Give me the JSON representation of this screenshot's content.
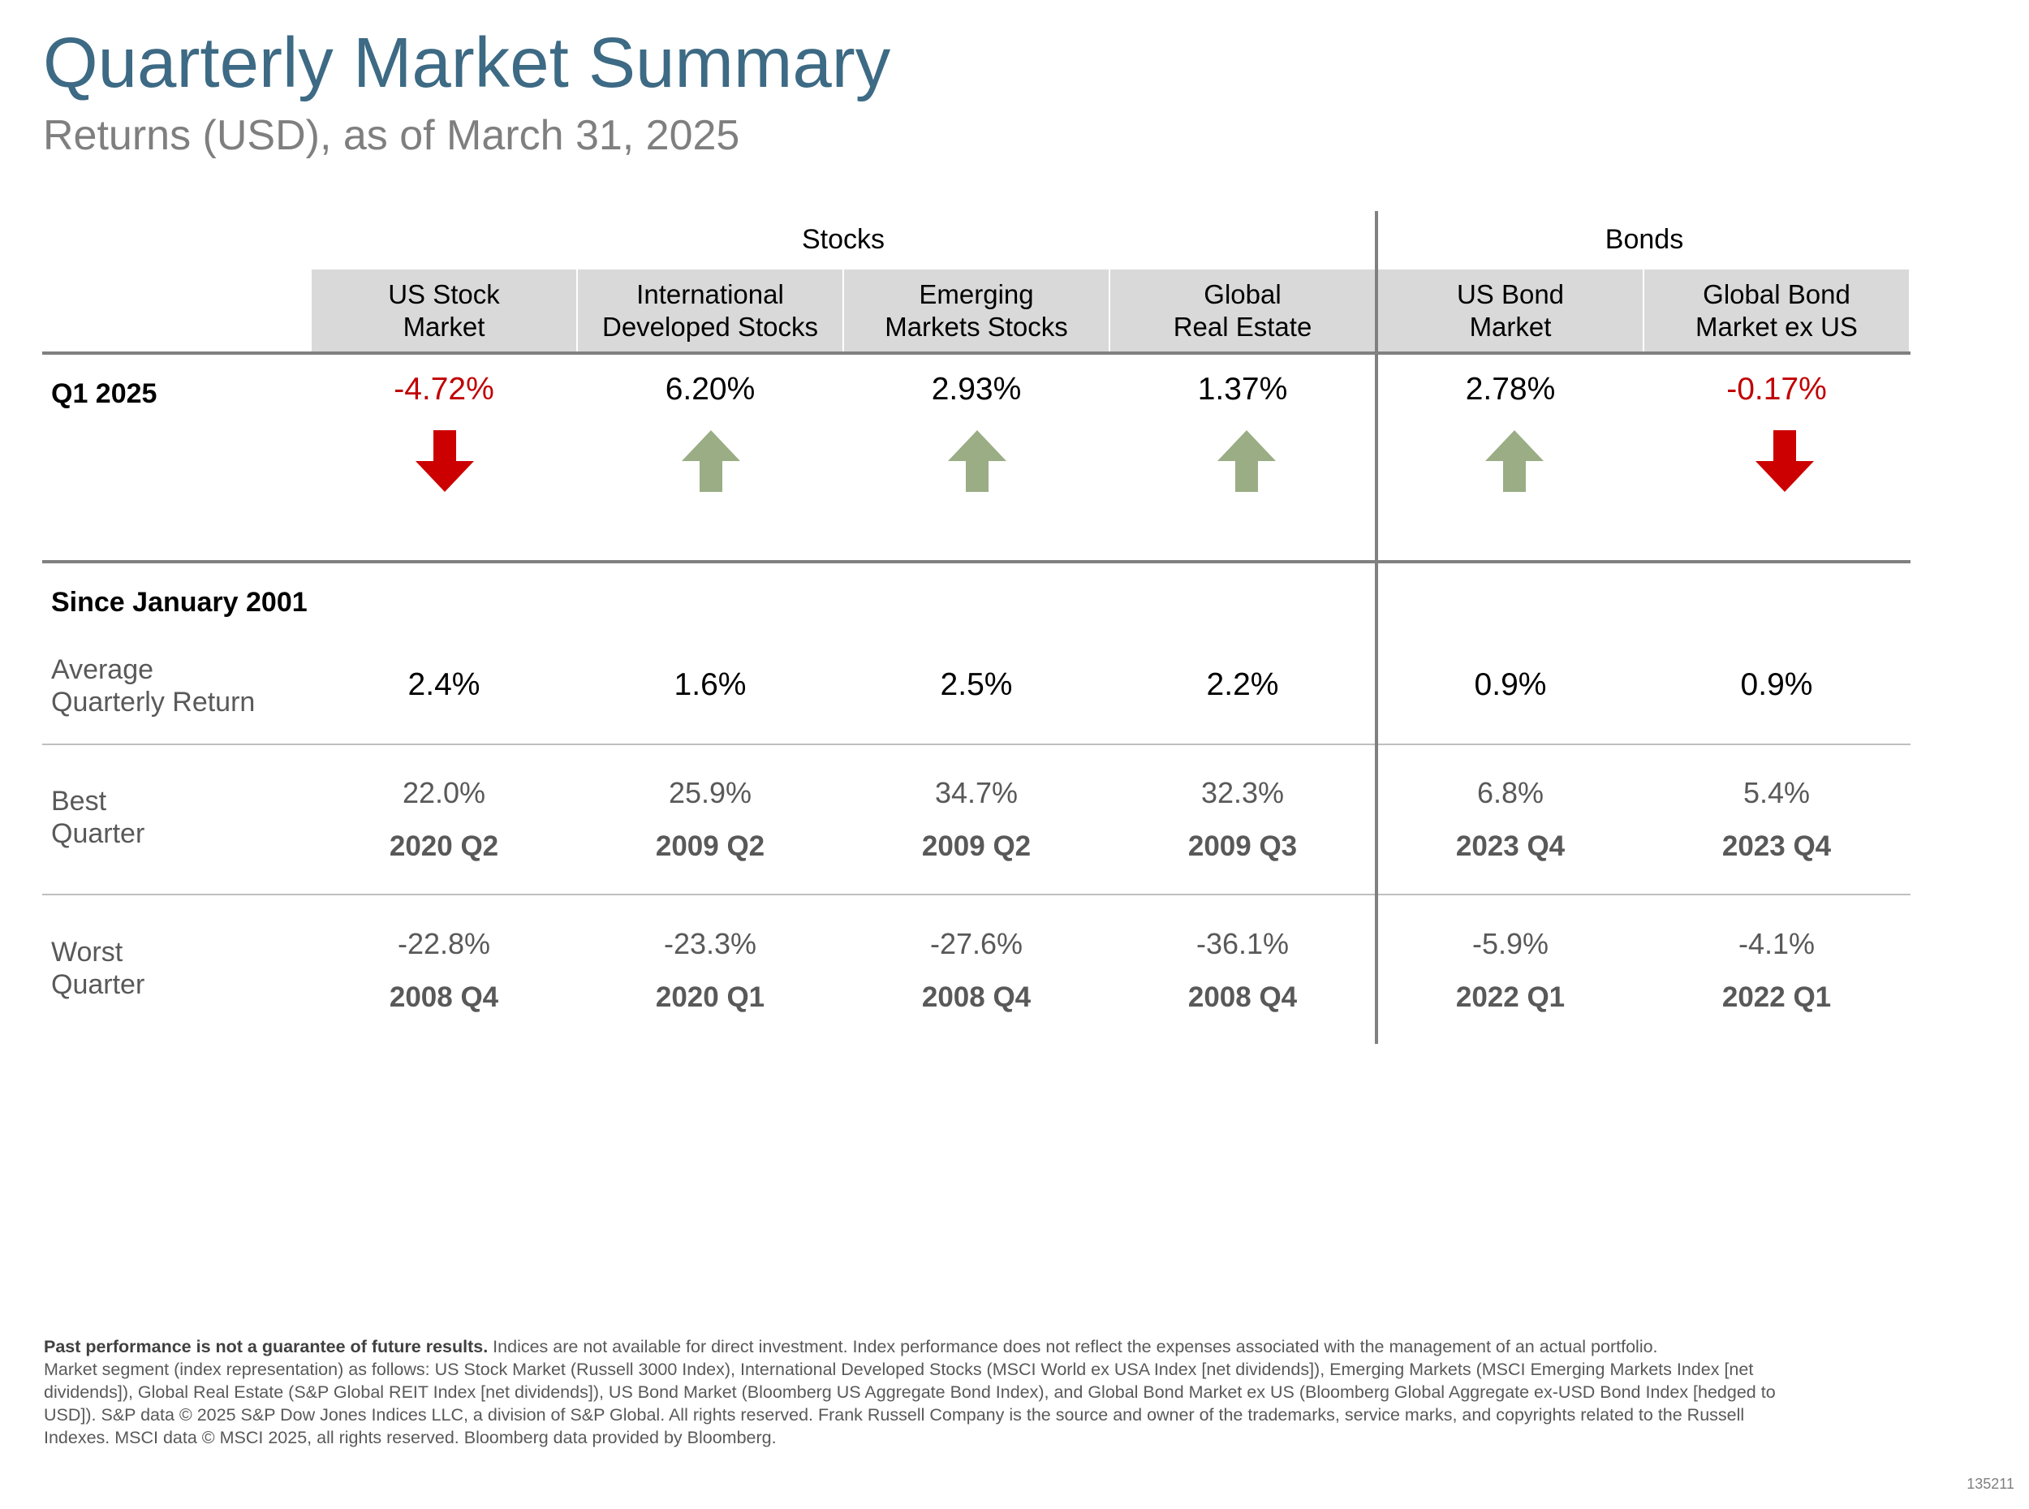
{
  "header": {
    "title": "Quarterly Market Summary",
    "subtitle": "Returns (USD), as of March 31, 2025"
  },
  "groups": {
    "stocks": "Stocks",
    "bonds": "Bonds"
  },
  "columns": [
    {
      "line1": "US Stock",
      "line2": "Market"
    },
    {
      "line1": "International",
      "line2": "Developed Stocks"
    },
    {
      "line1": "Emerging",
      "line2": "Markets Stocks"
    },
    {
      "line1": "Global",
      "line2": "Real Estate"
    },
    {
      "line1": "US Bond",
      "line2": "Market"
    },
    {
      "line1": "Global Bond",
      "line2": "Market ex US"
    }
  ],
  "q1": {
    "label": "Q1 2025",
    "values": [
      "-4.72%",
      "6.20%",
      "2.93%",
      "1.37%",
      "2.78%",
      "-0.17%"
    ],
    "directions": [
      "down",
      "up",
      "up",
      "up",
      "up",
      "down"
    ]
  },
  "since": {
    "label": "Since January 2001",
    "average": {
      "label_line1": "Average",
      "label_line2": "Quarterly Return",
      "values": [
        "2.4%",
        "1.6%",
        "2.5%",
        "2.2%",
        "0.9%",
        "0.9%"
      ]
    },
    "best": {
      "label_line1": "Best",
      "label_line2": "Quarter",
      "values": [
        "22.0%",
        "25.9%",
        "34.7%",
        "32.3%",
        "6.8%",
        "5.4%"
      ],
      "quarters": [
        "2020 Q2",
        "2009 Q2",
        "2009 Q2",
        "2009 Q3",
        "2023 Q4",
        "2023 Q4"
      ]
    },
    "worst": {
      "label_line1": "Worst",
      "label_line2": "Quarter",
      "values": [
        "-22.8%",
        "-23.3%",
        "-27.6%",
        "-36.1%",
        "-5.9%",
        "-4.1%"
      ],
      "quarters": [
        "2008 Q4",
        "2020 Q1",
        "2008 Q4",
        "2008 Q4",
        "2022 Q1",
        "2022 Q1"
      ]
    }
  },
  "colors": {
    "title": "#3d6a84",
    "negative": "#c00000",
    "positive": "#000000",
    "arrow_up": "#9aad85",
    "arrow_down": "#cc0000",
    "header_fill": "#d9d9d9"
  },
  "footnote": {
    "bold": "Past performance is not a guarantee of future results.",
    "line1": " Indices are not available for direct investment. Index performance does not reflect the expenses associated with the management of an actual portfolio.",
    "line2": "Market segment (index representation) as follows: US Stock Market (Russell 3000 Index), International Developed Stocks (MSCI World ex USA Index [net dividends]), Emerging Markets (MSCI Emerging Markets Index [net",
    "line3": "dividends]), Global Real Estate (S&P Global REIT Index [net dividends]), US Bond Market (Bloomberg US Aggregate Bond Index), and Global Bond Market ex US (Bloomberg Global Aggregate ex-USD Bond Index [hedged to",
    "line4": "USD]). S&P data © 2025 S&P Dow Jones Indices LLC, a division of S&P Global. All rights reserved. Frank Russell Company is the source and owner of the trademarks, service marks, and copyrights related to the Russell",
    "line5": "Indexes. MSCI data © MSCI 2025, all rights reserved. Bloomberg data provided by Bloomberg."
  },
  "doc_code": "135211"
}
